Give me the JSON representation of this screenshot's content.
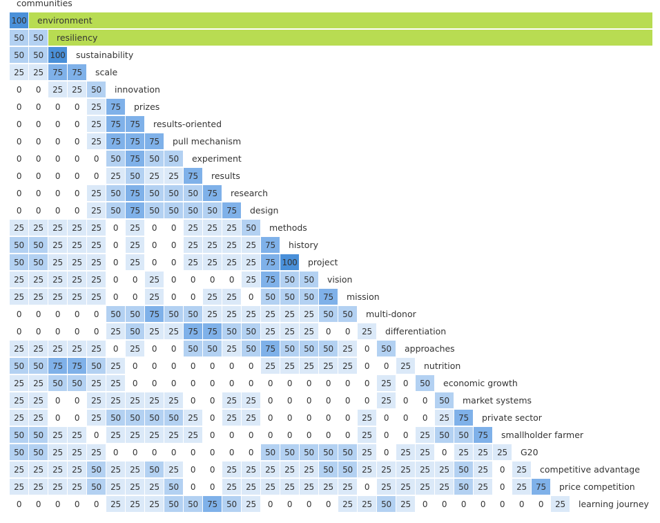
{
  "chart_data": {
    "type": "heatmap",
    "title": "",
    "palette": {
      "0": "#ffffff",
      "25": "#dbe9f8",
      "50": "#b3d1f2",
      "75": "#7fb1e9",
      "100": "#4a90d9"
    },
    "highlight_color": "#b8dc52",
    "highlight_rows": [
      1,
      2
    ],
    "rows": [
      {
        "label": "communities",
        "values": []
      },
      {
        "label": "environment",
        "values": [
          100
        ]
      },
      {
        "label": "resiliency",
        "values": [
          50,
          50
        ]
      },
      {
        "label": "sustainability",
        "values": [
          50,
          50,
          100
        ]
      },
      {
        "label": "scale",
        "values": [
          25,
          25,
          75,
          75
        ]
      },
      {
        "label": "innovation",
        "values": [
          0,
          0,
          25,
          25,
          50
        ]
      },
      {
        "label": "prizes",
        "values": [
          0,
          0,
          0,
          0,
          25,
          75
        ]
      },
      {
        "label": "results-oriented",
        "values": [
          0,
          0,
          0,
          0,
          25,
          75,
          75
        ]
      },
      {
        "label": "pull mechanism",
        "values": [
          0,
          0,
          0,
          0,
          25,
          75,
          75,
          75
        ]
      },
      {
        "label": "experiment",
        "values": [
          0,
          0,
          0,
          0,
          0,
          50,
          75,
          50,
          50
        ]
      },
      {
        "label": "results",
        "values": [
          0,
          0,
          0,
          0,
          0,
          25,
          50,
          25,
          25,
          75
        ]
      },
      {
        "label": "research",
        "values": [
          0,
          0,
          0,
          0,
          25,
          50,
          75,
          50,
          50,
          50,
          75
        ]
      },
      {
        "label": "design",
        "values": [
          0,
          0,
          0,
          0,
          25,
          50,
          75,
          50,
          50,
          50,
          50,
          75
        ]
      },
      {
        "label": "methods",
        "values": [
          25,
          25,
          25,
          25,
          25,
          0,
          25,
          0,
          0,
          25,
          25,
          25,
          50
        ]
      },
      {
        "label": "history",
        "values": [
          50,
          50,
          25,
          25,
          25,
          0,
          25,
          0,
          0,
          25,
          25,
          25,
          25,
          75
        ]
      },
      {
        "label": "project",
        "values": [
          50,
          50,
          25,
          25,
          25,
          0,
          25,
          0,
          0,
          25,
          25,
          25,
          25,
          75,
          100
        ]
      },
      {
        "label": "vision",
        "values": [
          25,
          25,
          25,
          25,
          25,
          0,
          0,
          25,
          0,
          0,
          0,
          0,
          25,
          75,
          50,
          50
        ]
      },
      {
        "label": "mission",
        "values": [
          25,
          25,
          25,
          25,
          25,
          0,
          0,
          25,
          0,
          0,
          25,
          25,
          0,
          50,
          50,
          50,
          75
        ]
      },
      {
        "label": "multi-donor",
        "values": [
          0,
          0,
          0,
          0,
          0,
          50,
          50,
          75,
          50,
          50,
          25,
          25,
          25,
          25,
          25,
          25,
          50,
          50
        ]
      },
      {
        "label": "differentiation",
        "values": [
          0,
          0,
          0,
          0,
          0,
          25,
          50,
          25,
          25,
          75,
          75,
          50,
          50,
          25,
          25,
          25,
          0,
          0,
          25
        ]
      },
      {
        "label": "approaches",
        "values": [
          25,
          25,
          25,
          25,
          25,
          0,
          25,
          0,
          0,
          50,
          50,
          25,
          50,
          75,
          50,
          50,
          50,
          25,
          0,
          50
        ]
      },
      {
        "label": "nutrition",
        "values": [
          50,
          50,
          75,
          75,
          50,
          25,
          0,
          0,
          0,
          0,
          0,
          0,
          0,
          25,
          25,
          25,
          25,
          25,
          0,
          0,
          25
        ]
      },
      {
        "label": "economic growth",
        "values": [
          25,
          25,
          50,
          50,
          25,
          25,
          0,
          0,
          0,
          0,
          0,
          0,
          0,
          0,
          0,
          0,
          0,
          0,
          0,
          25,
          0,
          50
        ]
      },
      {
        "label": "market systems",
        "values": [
          25,
          25,
          0,
          0,
          25,
          25,
          25,
          25,
          25,
          0,
          0,
          25,
          25,
          0,
          0,
          0,
          0,
          0,
          0,
          25,
          0,
          0,
          50
        ]
      },
      {
        "label": "private sector",
        "values": [
          25,
          25,
          0,
          0,
          25,
          50,
          50,
          50,
          50,
          25,
          0,
          25,
          25,
          0,
          0,
          0,
          0,
          0,
          25,
          0,
          0,
          0,
          25,
          75
        ]
      },
      {
        "label": "smallholder farmer",
        "values": [
          50,
          50,
          25,
          25,
          0,
          25,
          25,
          25,
          25,
          25,
          0,
          0,
          0,
          0,
          0,
          0,
          0,
          0,
          25,
          0,
          0,
          25,
          50,
          50,
          75
        ]
      },
      {
        "label": "G20",
        "values": [
          50,
          50,
          25,
          25,
          25,
          0,
          0,
          0,
          0,
          0,
          0,
          0,
          0,
          50,
          50,
          50,
          50,
          50,
          25,
          0,
          25,
          25,
          0,
          25,
          25,
          25
        ]
      },
      {
        "label": "competitive advantage",
        "values": [
          25,
          25,
          25,
          25,
          50,
          25,
          25,
          50,
          25,
          0,
          0,
          25,
          25,
          25,
          25,
          25,
          50,
          50,
          25,
          25,
          25,
          25,
          25,
          50,
          25,
          0,
          25
        ]
      },
      {
        "label": "price competition",
        "values": [
          25,
          25,
          25,
          25,
          50,
          25,
          25,
          25,
          50,
          0,
          0,
          25,
          25,
          25,
          25,
          25,
          25,
          25,
          0,
          25,
          25,
          25,
          25,
          50,
          25,
          0,
          25,
          75
        ]
      },
      {
        "label": "learning journey",
        "values": [
          0,
          0,
          0,
          0,
          0,
          25,
          25,
          25,
          50,
          50,
          75,
          50,
          25,
          0,
          0,
          0,
          0,
          25,
          25,
          50,
          25,
          0,
          0,
          0,
          0,
          0,
          0,
          0,
          25
        ]
      }
    ]
  }
}
